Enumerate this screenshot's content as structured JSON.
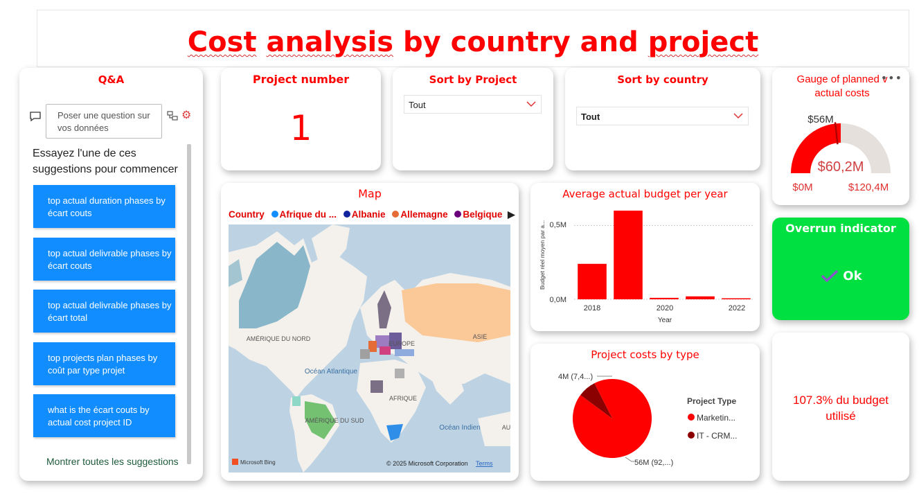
{
  "header": {
    "title_part1": "Cost",
    "title_part2": "analysis",
    "title_part3": "by country and",
    "title_part4": "project"
  },
  "qa": {
    "title": "Q&A",
    "input_placeholder": "Poser une question sur vos données",
    "hint": "Essayez l'une de ces suggestions pour commencer",
    "suggestions": [
      "top actual duration phases by écart couts",
      "top actual delivrable phases by écart couts",
      "top actual delivrable phases by écart total",
      "top projects plan phases by coût par type projet",
      "what is the écart couts by actual cost project ID"
    ],
    "more_label": "Montrer toutes les suggestions"
  },
  "project_number": {
    "title": "Project number",
    "value": "1"
  },
  "sort_project": {
    "title": "Sort by Project",
    "selected": "Tout"
  },
  "sort_country": {
    "title": "Sort by country",
    "selected": "Tout"
  },
  "gauge": {
    "title": "Gauge of planned vs actual costs",
    "title_display": "Gauge of planned v actual costs",
    "value_label": "$60,2M",
    "target_label": "$56M",
    "min_label": "$0M",
    "max_label": "$120,4M",
    "value": 60.2,
    "target": 56,
    "min": 0,
    "max": 120.4,
    "more_icon": "more-options-icon"
  },
  "overrun": {
    "title": "Overrun indicator",
    "status": "Ok",
    "icon": "check-icon",
    "color": "#00e040"
  },
  "budget_used": {
    "text": "107.3% du budget utilisé"
  },
  "map": {
    "title": "Map",
    "legend_title": "Country",
    "legend": [
      {
        "name": "Afrique du ...",
        "color": "#118dff"
      },
      {
        "name": "Albanie",
        "color": "#12239e"
      },
      {
        "name": "Allemagne",
        "color": "#e66c37"
      },
      {
        "name": "Belgique",
        "color": "#6b007b"
      }
    ],
    "labels": {
      "na": "AMÉRIQUE DU NORD",
      "eu": "EUROPE",
      "asia": "ASIE",
      "atl": "Océan Atlantique",
      "af": "AFRIQUE",
      "sa": "AMÉRIQUE DU SUD",
      "ind": "Océan Indien",
      "au": "AU"
    },
    "attribution": "© 2025 Microsoft Corporation",
    "terms": "Terms",
    "bing": "Microsoft Bing"
  },
  "bar_chart": {
    "title": "Average actual budget per year",
    "ylabel": "Budget réel moyen par a...",
    "xlabel": "Year",
    "y_ticks": [
      "0,0M",
      "0,5M"
    ],
    "x_ticks": [
      "2018",
      "2020",
      "2022"
    ],
    "chart_data": {
      "type": "bar",
      "x": [
        2018,
        2019,
        2020,
        2021,
        2022
      ],
      "values": [
        0.24,
        0.6,
        0.01,
        0.02,
        0.005
      ],
      "ylim": [
        0,
        0.6
      ],
      "color": "#ff0000"
    }
  },
  "pie_chart": {
    "title": "Project costs by type",
    "legend_title": "Project Type",
    "legend": [
      {
        "name": "Marketin...",
        "color": "#ff0000"
      },
      {
        "name": "IT -  CRM...",
        "color": "#8b0000"
      }
    ],
    "labels": [
      "56M (92,...)",
      "4M (7,4...)"
    ],
    "chart_data": {
      "type": "pie",
      "values": [
        56,
        4.5
      ],
      "colors": [
        "#ff0000",
        "#8b0000"
      ]
    }
  }
}
